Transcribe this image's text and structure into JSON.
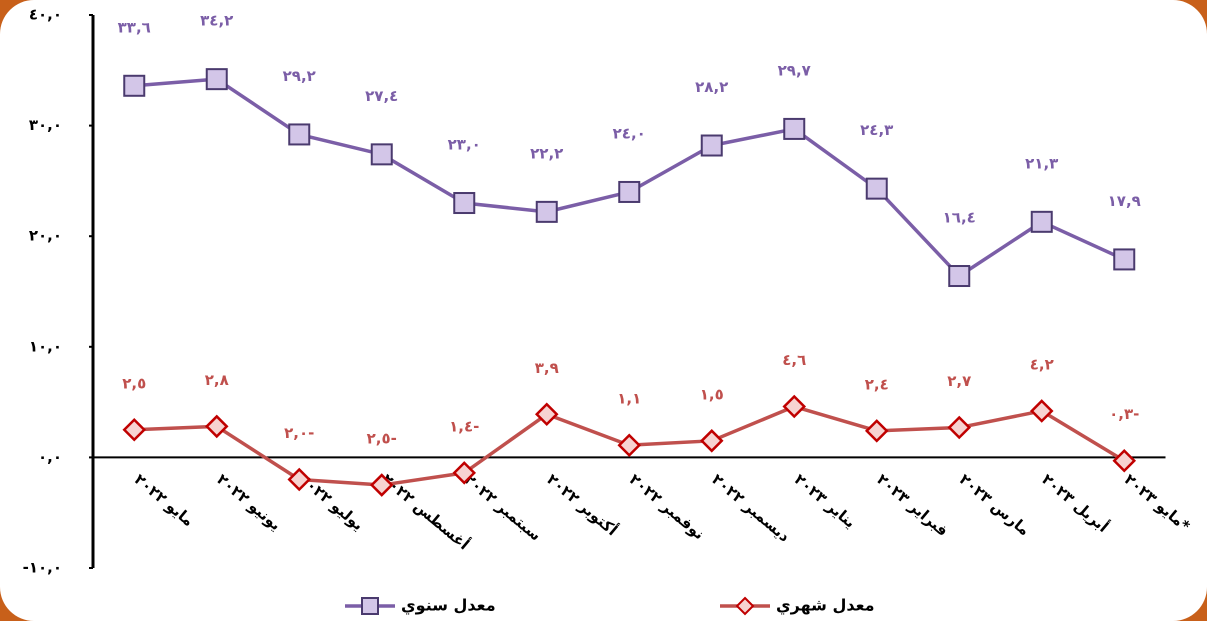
{
  "chart_data": {
    "type": "line",
    "categories": [
      "مايو ٢٠٢٢",
      "يونيو ٢٠٢٢",
      "يوليو ٢٠٢٢",
      "أغسطس ٢٠٢٢",
      "سبتمبر ٢٠٢٢",
      "أكتوبر ٢٠٢٢",
      "نوفمبر ٢٠٢٢",
      "ديسمبر ٢٠٢٢",
      "يناير ٢٠٢٣",
      "فبراير ٢٠٢٣",
      "مارس ٢٠٢٣",
      "أبريل ٢٠٢٣",
      "مايو ٢٠٢٣*"
    ],
    "series": [
      {
        "name": "معدل سنوي",
        "color": "#7b5ea7",
        "marker": "square",
        "values": [
          33.6,
          34.2,
          29.2,
          27.4,
          23.0,
          22.2,
          24.0,
          28.2,
          29.7,
          24.3,
          16.4,
          21.3,
          17.9
        ],
        "value_labels": [
          "٣٣,٦",
          "٣٤,٢",
          "٢٩,٢",
          "٢٧,٤",
          "٢٣,٠",
          "٢٢,٢",
          "٢٤,٠",
          "٢٨,٢",
          "٢٩,٧",
          "٢٤,٣",
          "١٦,٤",
          "٢١,٣",
          "١٧,٩"
        ]
      },
      {
        "name": "معدل شهري",
        "color": "#c0504d",
        "marker": "diamond",
        "values": [
          2.5,
          2.8,
          -2.0,
          -2.5,
          -1.4,
          3.9,
          1.1,
          1.5,
          4.6,
          2.4,
          2.7,
          4.2,
          -0.3
        ],
        "value_labels": [
          "٢,٥",
          "٢,٨",
          "٢,٠-",
          "٢,٥-",
          "١,٤-",
          "٣,٩",
          "١,١",
          "١,٥",
          "٤,٦",
          "٢,٤",
          "٢,٧",
          "٤,٢",
          "٠,٣-"
        ]
      }
    ],
    "ylim": [
      -10,
      40
    ],
    "yticks": [
      {
        "value": -10,
        "label": "-١٠,٠"
      },
      {
        "value": 0,
        "label": "٠,٠"
      },
      {
        "value": 10,
        "label": "١٠,٠"
      },
      {
        "value": 20,
        "label": "٢٠,٠"
      },
      {
        "value": 30,
        "label": "٣٠,٠"
      },
      {
        "value": 40,
        "label": "٤٠,٠"
      }
    ],
    "grid": false,
    "legend": "bottom"
  }
}
